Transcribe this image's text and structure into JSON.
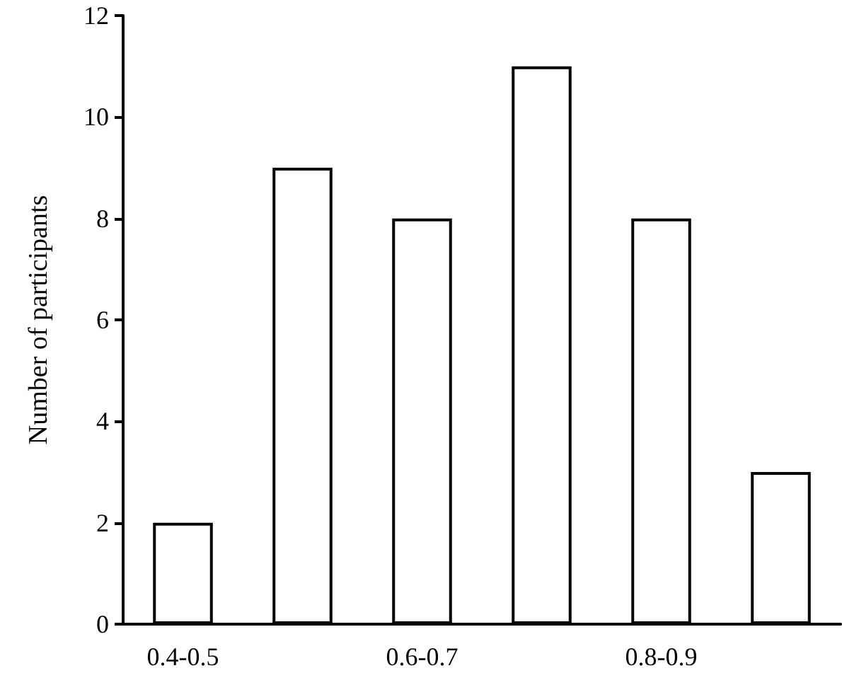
{
  "chart_data": {
    "type": "bar",
    "ylabel": "Number of participants",
    "categories": [
      "0.4-0.5",
      null,
      "0.6-0.7",
      null,
      "0.8-0.9",
      null
    ],
    "values": [
      2,
      9,
      8,
      11,
      8,
      3
    ],
    "color": "#ffffff",
    "ylim": [
      0,
      12
    ],
    "yticks": [
      0,
      2,
      4,
      6,
      8,
      10,
      12
    ],
    "grid": false
  }
}
